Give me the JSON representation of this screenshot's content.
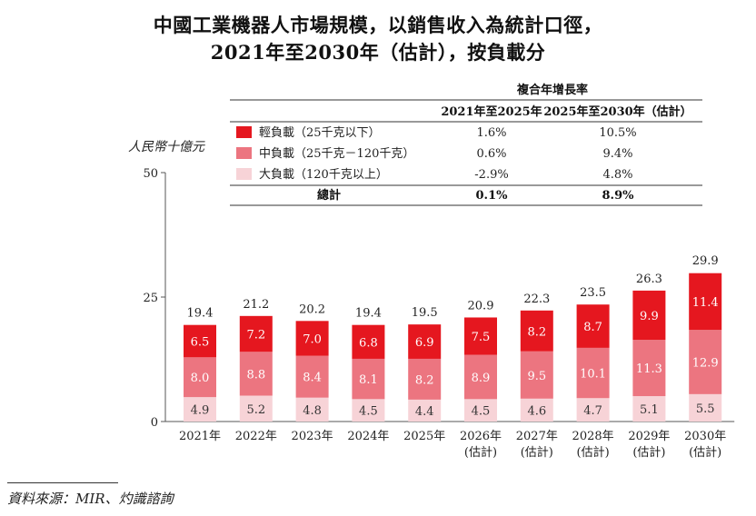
{
  "title_line1": "中國工業機器人市場規模，以銷售收入為統計口徑，",
  "title_line2": "2021年至2030年（估計），按負載分",
  "source": "資料來源：MIR、灼識諮詢",
  "colors": {
    "light": "#e5171f",
    "medium": "#ec7580",
    "heavy": "#f7d3d7",
    "total": "#dddddd"
  },
  "cagr_table": {
    "header": "複合年增長率",
    "columns": [
      "2021年至2025年",
      "2025年至2030年（估計）"
    ],
    "rows": [
      {
        "label": "輕負載（25千克以下）",
        "values": [
          "1.6%",
          "10.5%"
        ],
        "color": "#e5171f"
      },
      {
        "label": "中負載（25千克－120千克）",
        "values": [
          "0.6%",
          "9.4%"
        ],
        "color": "#ec7580"
      },
      {
        "label": "大負載（120千克以上）",
        "values": [
          "-2.9%",
          "4.8%"
        ],
        "color": "#f7d3d7"
      }
    ],
    "total": {
      "label": "總計",
      "values": [
        "0.1%",
        "8.9%"
      ]
    }
  },
  "chart_data": {
    "type": "bar",
    "stacked": true,
    "ylabel": "人民幣十億元",
    "ylim": [
      0,
      50
    ],
    "yticks": [
      0,
      25,
      50
    ],
    "categories": [
      [
        "2021年"
      ],
      [
        "2022年"
      ],
      [
        "2023年"
      ],
      [
        "2024年"
      ],
      [
        "2025年"
      ],
      [
        "2026年",
        "(估計)"
      ],
      [
        "2027年",
        "(估計)"
      ],
      [
        "2028年",
        "(估計)"
      ],
      [
        "2029年",
        "(估計)"
      ],
      [
        "2030年",
        "(估計)"
      ]
    ],
    "series": [
      {
        "name": "大負載（120千克以上）",
        "key": "heavy",
        "values": [
          4.9,
          5.2,
          4.8,
          4.5,
          4.4,
          4.5,
          4.6,
          4.7,
          5.1,
          5.5
        ],
        "labels": [
          "4.9",
          "5.2",
          "4.8",
          "4.5",
          "4.4",
          "4.5",
          "4.6",
          "4.7",
          "5.1",
          "5.5"
        ]
      },
      {
        "name": "中負載（25千克－120千克）",
        "key": "medium",
        "values": [
          8.0,
          8.8,
          8.4,
          8.1,
          8.2,
          8.9,
          9.5,
          10.1,
          11.3,
          12.9
        ],
        "labels": [
          "8.0",
          "8.8",
          "8.4",
          "8.1",
          "8.2",
          "8.9",
          "9.5",
          "10.1",
          "11.3",
          "12.9"
        ]
      },
      {
        "name": "輕負載（25千克以下）",
        "key": "light",
        "values": [
          6.5,
          7.2,
          7.0,
          6.8,
          6.9,
          7.5,
          8.2,
          8.7,
          9.9,
          11.4
        ],
        "labels": [
          "6.5",
          "7.2",
          "7.0",
          "6.8",
          "6.9",
          "7.5",
          "8.2",
          "8.7",
          "9.9",
          "11.4"
        ]
      }
    ],
    "totals": [
      19.4,
      21.2,
      20.2,
      19.4,
      19.5,
      20.9,
      22.3,
      23.5,
      26.3,
      29.9
    ],
    "total_labels": [
      "19.4",
      "21.2",
      "20.2",
      "19.4",
      "19.5",
      "20.9",
      "22.3",
      "23.5",
      "26.3",
      "29.9"
    ],
    "grid": false,
    "legend": "table at top-right"
  }
}
